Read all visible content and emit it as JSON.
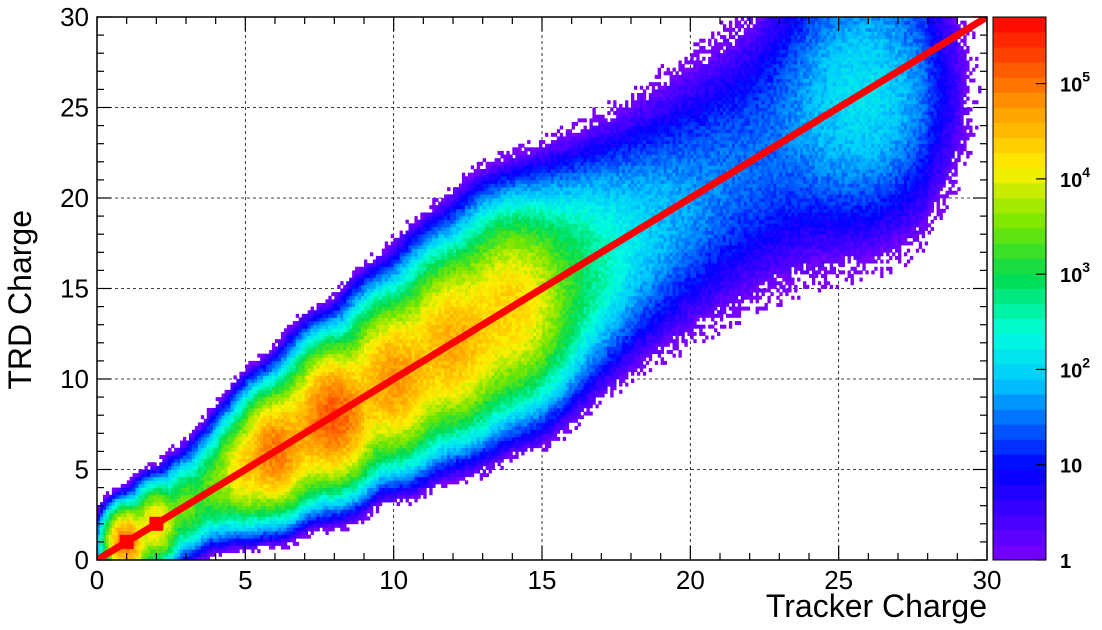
{
  "chart_data": {
    "type": "heatmap",
    "title": "",
    "xlabel": "Tracker Charge",
    "ylabel": "TRD Charge",
    "xlim": [
      0,
      30
    ],
    "ylim": [
      0,
      30
    ],
    "x_ticks": [
      "0",
      "5",
      "10",
      "15",
      "20",
      "25",
      "30"
    ],
    "y_ticks": [
      "0",
      "5",
      "10",
      "15",
      "20",
      "25",
      "30"
    ],
    "grid": true,
    "grid_style": "dashed",
    "z_scale": "log",
    "zlim": [
      1,
      500000
    ],
    "colorbar_labels": [
      {
        "base": "1",
        "exp": "",
        "value": 1
      },
      {
        "base": "10",
        "exp": "",
        "value": 10
      },
      {
        "base": "10",
        "exp": "2",
        "value": 100
      },
      {
        "base": "10",
        "exp": "3",
        "value": 1000
      },
      {
        "base": "10",
        "exp": "4",
        "value": 10000
      },
      {
        "base": "10",
        "exp": "5",
        "value": 100000
      }
    ],
    "clusters": [
      {
        "x": 1,
        "y": 1,
        "peak": 100000
      },
      {
        "x": 2,
        "y": 2,
        "peak": 20000
      },
      {
        "x": 3,
        "y": 3,
        "peak": 3000
      },
      {
        "x": 4,
        "y": 4,
        "peak": 3000
      },
      {
        "x": 5,
        "y": 5,
        "peak": 20000
      },
      {
        "x": 6,
        "y": 6,
        "peak": 100000
      },
      {
        "x": 7,
        "y": 7,
        "peak": 30000
      },
      {
        "x": 8,
        "y": 8,
        "peak": 150000
      },
      {
        "x": 9,
        "y": 9,
        "peak": 8000
      },
      {
        "x": 10,
        "y": 10,
        "peak": 60000
      },
      {
        "x": 11,
        "y": 11,
        "peak": 10000
      },
      {
        "x": 12,
        "y": 12,
        "peak": 40000
      },
      {
        "x": 13,
        "y": 13,
        "peak": 8000
      },
      {
        "x": 14,
        "y": 14,
        "peak": 20000
      },
      {
        "x": 15,
        "y": 15,
        "peak": 2000
      },
      {
        "x": 16,
        "y": 16,
        "peak": 500
      },
      {
        "x": 17,
        "y": 17,
        "peak": 150
      },
      {
        "x": 18,
        "y": 18,
        "peak": 60
      },
      {
        "x": 19,
        "y": 19,
        "peak": 30
      },
      {
        "x": 20,
        "y": 20,
        "peak": 20
      },
      {
        "x": 21,
        "y": 21,
        "peak": 12
      },
      {
        "x": 22,
        "y": 22,
        "peak": 10
      },
      {
        "x": 23,
        "y": 23,
        "peak": 8
      },
      {
        "x": 24,
        "y": 24,
        "peak": 10
      },
      {
        "x": 25,
        "y": 25,
        "peak": 30
      },
      {
        "x": 26,
        "y": 26,
        "peak": 100
      }
    ],
    "reference_line": {
      "x": [
        0,
        30
      ],
      "y": [
        0,
        30
      ],
      "color": "#ff0000"
    },
    "markers": [
      {
        "x": 1,
        "y": 1
      },
      {
        "x": 2,
        "y": 2
      }
    ]
  }
}
